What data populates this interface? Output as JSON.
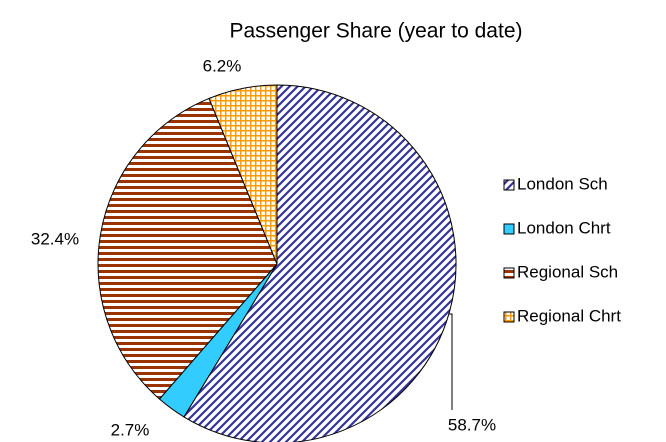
{
  "chart_data": {
    "type": "pie",
    "title": "Passenger Share (year to date)",
    "categories": [
      "London Sch",
      "London Chrt",
      "Regional Sch",
      "Regional Chrt"
    ],
    "values": [
      58.7,
      2.7,
      32.4,
      6.2
    ],
    "value_labels": [
      "58.7%",
      "2.7%",
      "32.4%",
      "6.2%"
    ],
    "colors": [
      "#333399",
      "#33ccff",
      "#993300",
      "#ff9900"
    ],
    "patterns": [
      "diagonal",
      "solid",
      "horizontal",
      "grid"
    ],
    "legend": "right"
  }
}
